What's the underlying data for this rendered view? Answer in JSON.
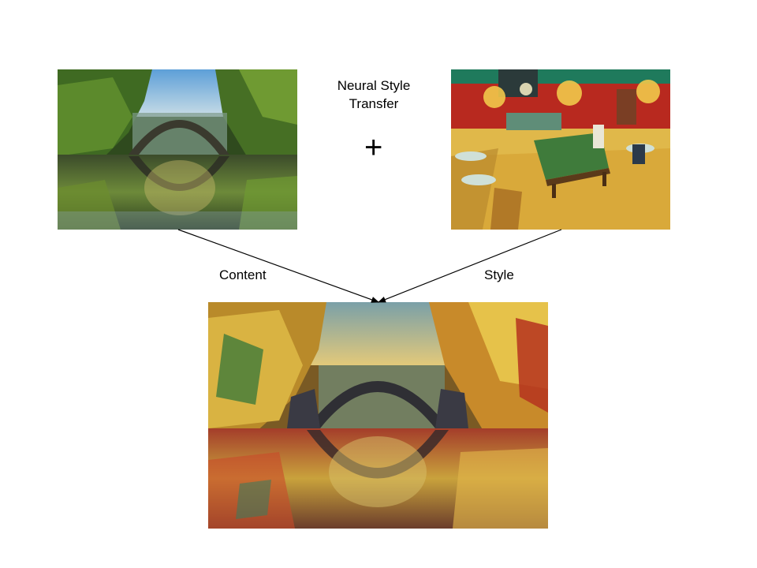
{
  "title": {
    "line1": "Neural Style",
    "line2": "Transfer"
  },
  "plus_symbol": "+",
  "labels": {
    "content": "Content",
    "style": "Style"
  },
  "images": {
    "content": "photo of an arched stone bridge reflected in a forest lake",
    "style": "painting of a cafe interior with a billiard table and hanging lamps",
    "output": "stylized painting of the arched bridge and its reflection"
  },
  "colors": {
    "arrow": "#000000",
    "text": "#000000"
  }
}
